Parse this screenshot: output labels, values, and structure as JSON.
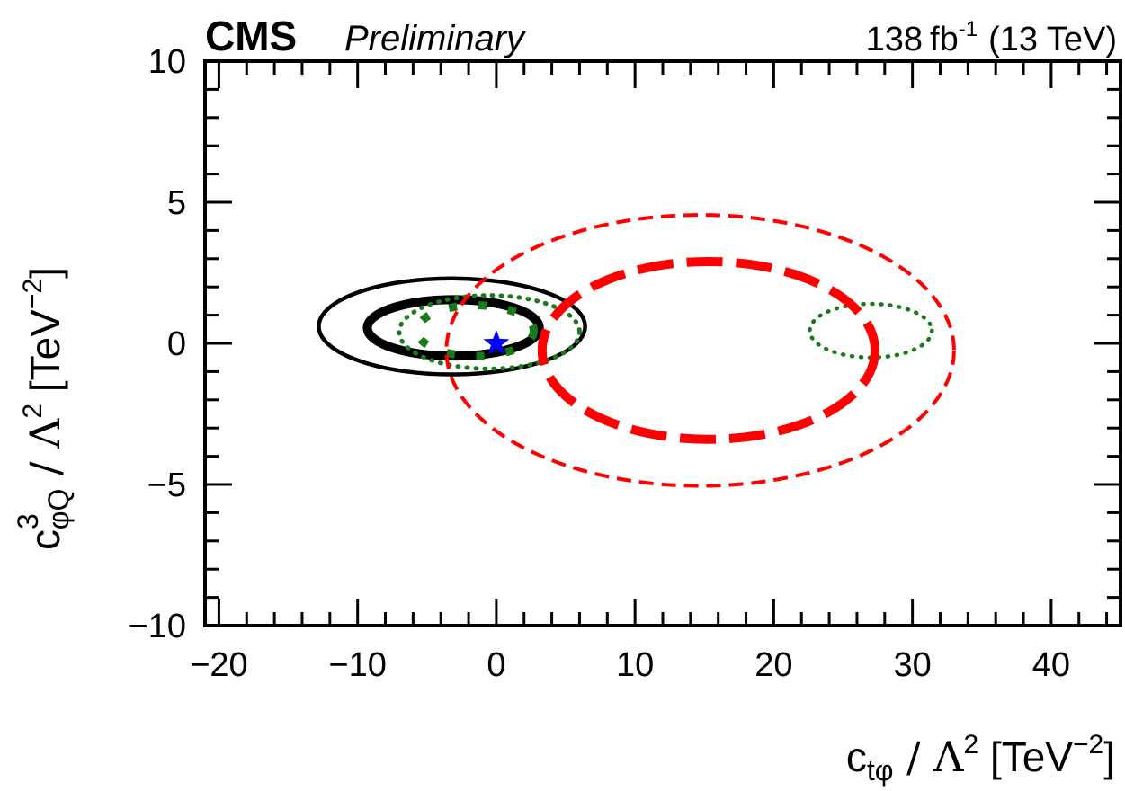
{
  "header": {
    "experiment": "CMS",
    "status": "Preliminary",
    "lumi_value": "138",
    "lumi_unit": "fb",
    "lumi_exp": "-1",
    "energy": "(13 TeV)"
  },
  "chart_data": {
    "type": "contour",
    "xlabel": {
      "c": "c",
      "sub": "tφ",
      "rest": " / Λ",
      "sq": "2",
      "unit": " [TeV",
      "uexp": "−2",
      "close": "]"
    },
    "ylabel": {
      "c": "c",
      "sup": "3",
      "sub": "φQ",
      "rest": " / Λ",
      "sq": "2",
      "unit": " [TeV",
      "uexp": "−2",
      "close": "]"
    },
    "xlim": [
      -21,
      45
    ],
    "ylim": [
      -10,
      10
    ],
    "x_ticks": [
      -20,
      -10,
      0,
      10,
      20,
      30,
      40
    ],
    "x_tick_labels": [
      "−20",
      "−10",
      "0",
      "10",
      "20",
      "30",
      "40"
    ],
    "y_ticks": [
      -10,
      -5,
      0,
      5,
      10
    ],
    "y_tick_labels": [
      "−10",
      "−5",
      "0",
      "5",
      "10"
    ],
    "contours": [
      {
        "kind": "black-solid-thin",
        "color": "#000000",
        "cx": -3.2,
        "cy": 0.6,
        "rx": 9.6,
        "ry": 1.7
      },
      {
        "kind": "black-solid-thick",
        "color": "#000000",
        "cx": -3.1,
        "cy": 0.55,
        "rx": 6.2,
        "ry": 1.0
      },
      {
        "kind": "green-dotted-outer-left",
        "color": "#1a7a1a",
        "cx": -0.5,
        "cy": 0.4,
        "rx": 6.5,
        "ry": 1.3
      },
      {
        "kind": "green-dotted-thick-left",
        "color": "#1a7a1a",
        "cx": -1.5,
        "cy": 0.45,
        "rx": 4.2,
        "ry": 0.9
      },
      {
        "kind": "green-dotted-outer-right",
        "color": "#1a7a1a",
        "cx": 27.0,
        "cy": 0.45,
        "rx": 4.4,
        "ry": 0.95
      },
      {
        "kind": "red-dashed-thin",
        "color": "#ff0000",
        "cx": 14.7,
        "cy": -0.25,
        "rx": 18.3,
        "ry": 4.8
      },
      {
        "kind": "red-dashed-thick",
        "color": "#ff0000",
        "cx": 15.3,
        "cy": -0.25,
        "rx": 12.0,
        "ry": 3.15
      }
    ],
    "best_fit": {
      "x": 0,
      "y": 0,
      "color": "#0000ff",
      "marker": "star"
    }
  }
}
